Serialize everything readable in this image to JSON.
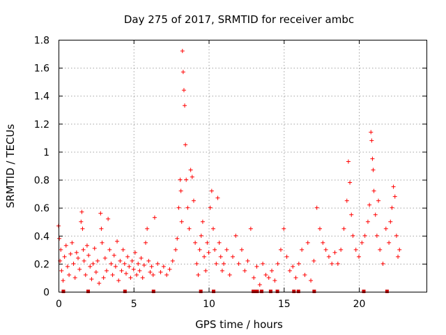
{
  "chart_data": {
    "type": "scatter",
    "title": "Day 275 of 2017, SRMTID for receiver ambc",
    "xlabel": "GPS time / hours",
    "ylabel": "SRMTID / TECUs",
    "xlim": [
      0,
      24.5
    ],
    "ylim": [
      0,
      1.8
    ],
    "xticks": [
      0,
      5,
      10,
      15,
      20
    ],
    "xtick_labels": [
      "0",
      "5",
      "10",
      "15",
      "20"
    ],
    "yticks": [
      0,
      0.2,
      0.4,
      0.6,
      0.8,
      1.0,
      1.2,
      1.4,
      1.6,
      1.8
    ],
    "ytick_labels": [
      "0",
      "0.2",
      "0.4",
      "0.6",
      "0.8",
      "1",
      "1.2",
      "1.4",
      "1.6",
      "1.8"
    ],
    "grid": true,
    "marker": "plus",
    "color": "#ff0000",
    "square_color": "#cc0000",
    "series": [
      {
        "name": "SRMTID",
        "x": [
          0.0,
          0.05,
          0.1,
          0.15,
          0.2,
          0.3,
          0.4,
          0.5,
          0.6,
          0.7,
          0.8,
          0.9,
          1.0,
          1.1,
          1.2,
          1.3,
          1.4,
          1.5,
          1.55,
          1.6,
          1.65,
          1.7,
          1.8,
          1.9,
          2.0,
          2.1,
          2.2,
          2.3,
          2.4,
          2.5,
          2.6,
          2.7,
          2.8,
          2.85,
          2.9,
          3.0,
          3.1,
          3.2,
          3.3,
          3.4,
          3.5,
          3.6,
          3.7,
          3.8,
          3.9,
          4.0,
          4.1,
          4.2,
          4.3,
          4.4,
          4.5,
          4.6,
          4.7,
          4.8,
          4.9,
          5.0,
          5.1,
          5.2,
          5.3,
          5.4,
          5.5,
          5.6,
          5.7,
          5.8,
          5.9,
          6.0,
          6.1,
          6.2,
          6.3,
          6.4,
          6.6,
          6.8,
          7.0,
          7.2,
          7.4,
          7.6,
          7.8,
          7.9,
          8.0,
          8.1,
          8.15,
          8.2,
          8.25,
          8.3,
          8.35,
          8.4,
          8.45,
          8.5,
          8.6,
          8.7,
          8.8,
          8.9,
          9.0,
          9.1,
          9.2,
          9.3,
          9.4,
          9.5,
          9.6,
          9.7,
          9.8,
          9.9,
          10.0,
          10.1,
          10.2,
          10.3,
          10.4,
          10.5,
          10.6,
          10.7,
          10.8,
          10.9,
          11.0,
          11.2,
          11.4,
          11.6,
          11.8,
          12.0,
          12.2,
          12.4,
          12.6,
          12.8,
          13.0,
          13.2,
          13.4,
          13.6,
          13.8,
          14.0,
          14.2,
          14.4,
          14.6,
          14.8,
          15.0,
          15.2,
          15.4,
          15.6,
          15.8,
          16.0,
          16.2,
          16.4,
          16.6,
          16.8,
          17.0,
          17.2,
          17.4,
          17.6,
          17.8,
          18.0,
          18.2,
          18.4,
          18.6,
          18.8,
          19.0,
          19.2,
          19.3,
          19.4,
          19.5,
          19.6,
          19.8,
          20.0,
          20.2,
          20.4,
          20.6,
          20.7,
          20.8,
          20.85,
          20.9,
          20.95,
          21.0,
          21.1,
          21.2,
          21.3,
          21.4,
          21.6,
          21.8,
          22.0,
          22.1,
          22.2,
          22.3,
          22.4,
          22.5,
          22.6,
          22.7
        ],
        "y": [
          0.47,
          0.38,
          0.22,
          0.3,
          0.15,
          0.08,
          0.25,
          0.33,
          0.18,
          0.12,
          0.27,
          0.35,
          0.2,
          0.1,
          0.28,
          0.24,
          0.16,
          0.5,
          0.57,
          0.45,
          0.3,
          0.22,
          0.12,
          0.33,
          0.26,
          0.18,
          0.09,
          0.2,
          0.31,
          0.14,
          0.22,
          0.06,
          0.56,
          0.45,
          0.35,
          0.1,
          0.24,
          0.15,
          0.52,
          0.3,
          0.2,
          0.12,
          0.26,
          0.18,
          0.36,
          0.08,
          0.22,
          0.15,
          0.3,
          0.2,
          0.13,
          0.25,
          0.18,
          0.1,
          0.22,
          0.16,
          0.28,
          0.12,
          0.2,
          0.15,
          0.24,
          0.1,
          0.19,
          0.35,
          0.45,
          0.22,
          0.14,
          0.18,
          0.12,
          0.53,
          0.2,
          0.14,
          0.18,
          0.12,
          0.16,
          0.22,
          0.3,
          0.38,
          0.6,
          0.8,
          0.72,
          0.5,
          1.72,
          1.57,
          1.44,
          1.33,
          1.05,
          0.8,
          0.6,
          0.45,
          0.87,
          0.82,
          0.65,
          0.35,
          0.2,
          0.12,
          0.3,
          0.4,
          0.5,
          0.25,
          0.15,
          0.35,
          0.28,
          0.6,
          0.72,
          0.45,
          0.3,
          0.2,
          0.67,
          0.35,
          0.25,
          0.15,
          0.2,
          0.3,
          0.12,
          0.25,
          0.4,
          0.2,
          0.3,
          0.15,
          0.22,
          0.45,
          0.1,
          0.18,
          0.05,
          0.2,
          0.12,
          0.1,
          0.15,
          0.08,
          0.2,
          0.3,
          0.45,
          0.25,
          0.15,
          0.18,
          0.1,
          0.2,
          0.3,
          0.12,
          0.35,
          0.08,
          0.22,
          0.6,
          0.45,
          0.35,
          0.3,
          0.25,
          0.2,
          0.28,
          0.2,
          0.3,
          0.45,
          0.65,
          0.93,
          0.78,
          0.55,
          0.4,
          0.3,
          0.25,
          0.35,
          0.4,
          0.5,
          0.62,
          1.14,
          1.08,
          0.95,
          0.87,
          0.72,
          0.55,
          0.4,
          0.65,
          0.3,
          0.2,
          0.45,
          0.35,
          0.5,
          0.6,
          0.75,
          0.68,
          0.4,
          0.25,
          0.3
        ]
      }
    ],
    "zero_squares_x": [
      0.3,
      1.95,
      4.4,
      6.3,
      9.45,
      10.3,
      12.95,
      13.05,
      13.2,
      13.5,
      14.1,
      14.55,
      15.65,
      15.95,
      17.0,
      20.3,
      21.85
    ]
  }
}
